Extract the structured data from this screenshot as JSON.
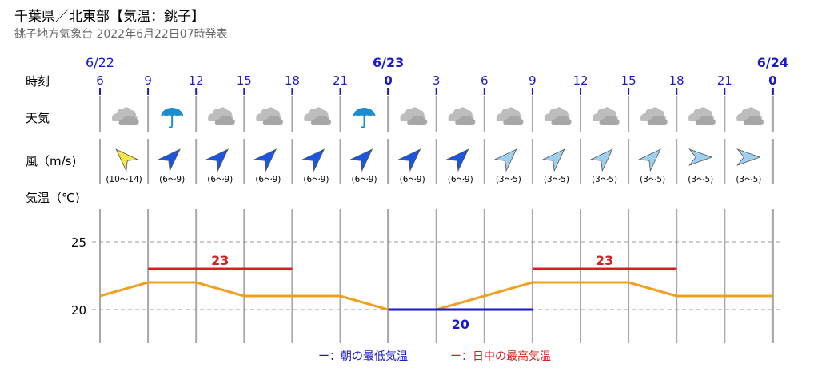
{
  "header": {
    "title": "千葉県／北東部【気温：銚子】",
    "subtitle": "銚子地方気象台 2022年6月22日07時発表"
  },
  "row_labels": {
    "time": "時刻",
    "weather": "天気",
    "wind": "風（m/s)",
    "temp": "気温（℃)"
  },
  "dates": [
    {
      "label": "6/22",
      "bold": false
    },
    {
      "label": "6/23",
      "bold": true
    },
    {
      "label": "6/24",
      "bold": true
    }
  ],
  "hours": [
    "6",
    "9",
    "12",
    "15",
    "18",
    "21",
    "0",
    "3",
    "6",
    "9",
    "12",
    "15",
    "18",
    "21",
    "0"
  ],
  "weather": [
    "cloudy",
    "rain",
    "cloudy",
    "cloudy",
    "cloudy",
    "rain",
    "cloudy",
    "cloudy",
    "cloudy",
    "cloudy",
    "cloudy",
    "cloudy",
    "cloudy",
    "cloudy"
  ],
  "wind": [
    {
      "dir": "NW",
      "range": "(10〜14)",
      "color": "#f5e94a"
    },
    {
      "dir": "NE",
      "range": "(6〜9)",
      "color": "#1a56e0"
    },
    {
      "dir": "NE",
      "range": "(6〜9)",
      "color": "#1a56e0"
    },
    {
      "dir": "NE",
      "range": "(6〜9)",
      "color": "#1a56e0"
    },
    {
      "dir": "NE",
      "range": "(6〜9)",
      "color": "#1a56e0"
    },
    {
      "dir": "NE",
      "range": "(6〜9)",
      "color": "#1a56e0"
    },
    {
      "dir": "NE",
      "range": "(6〜9)",
      "color": "#1a56e0"
    },
    {
      "dir": "NE",
      "range": "(6〜9)",
      "color": "#1a56e0"
    },
    {
      "dir": "NE",
      "range": "(3〜5)",
      "color": "#9fd0f0"
    },
    {
      "dir": "NE",
      "range": "(3〜5)",
      "color": "#9fd0f0"
    },
    {
      "dir": "NE",
      "range": "(3〜5)",
      "color": "#9fd0f0"
    },
    {
      "dir": "NE",
      "range": "(3〜5)",
      "color": "#9fd0f0"
    },
    {
      "dir": "E",
      "range": "(3〜5)",
      "color": "#9fd0f0"
    },
    {
      "dir": "E",
      "range": "(3〜5)",
      "color": "#9fd0f0"
    }
  ],
  "legend": {
    "min_label": "ー：朝の最低気温",
    "max_label": "ー：日中の最高気温"
  },
  "colors": {
    "date": "#1a1acc",
    "temp_line": "#f0a020",
    "max": "#d42020",
    "min": "#1a1acc"
  },
  "chart_data": {
    "type": "line",
    "x": [
      "6/22 6",
      "6/22 9",
      "6/22 12",
      "6/22 15",
      "6/22 18",
      "6/22 21",
      "6/23 0",
      "6/23 3",
      "6/23 6",
      "6/23 9",
      "6/23 12",
      "6/23 15",
      "6/23 18",
      "6/23 21",
      "6/24 0"
    ],
    "series": [
      {
        "values": [
          21,
          22,
          22,
          21,
          21,
          21,
          20,
          20,
          21,
          22,
          22,
          22,
          21,
          21,
          21
        ]
      }
    ],
    "ylim": [
      17.5,
      27.5
    ],
    "y_ticks": [
      20,
      25
    ],
    "grid": true,
    "max_temps": [
      {
        "value": 23,
        "label": "23",
        "from": "6/22 9",
        "to": "6/22 18"
      },
      {
        "value": 23,
        "label": "23",
        "from": "6/23 9",
        "to": "6/23 18"
      }
    ],
    "min_temps": [
      {
        "value": 20,
        "label": "20",
        "from": "6/23 0",
        "to": "6/23 9"
      }
    ]
  }
}
